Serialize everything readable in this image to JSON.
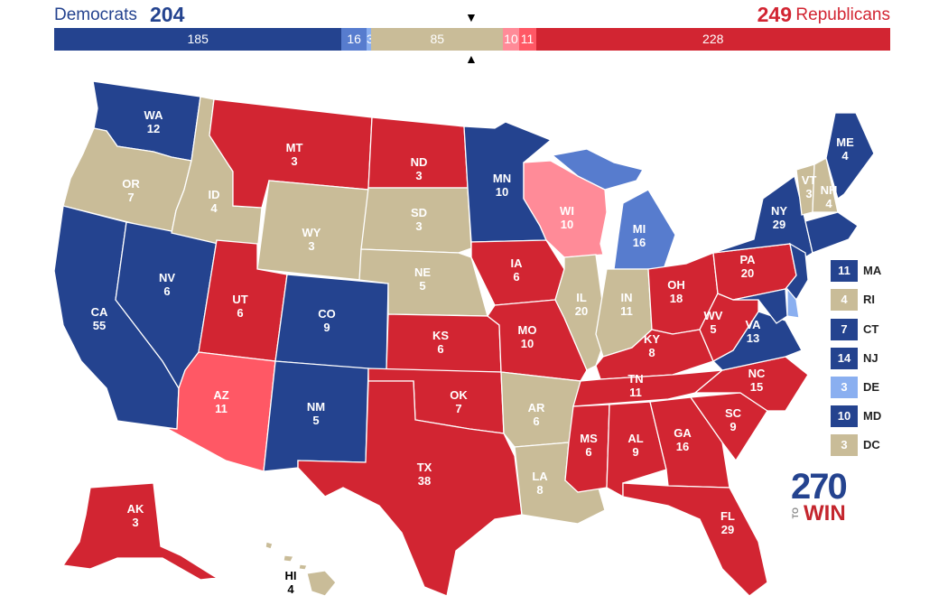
{
  "header": {
    "dem_label": "Democrats",
    "dem_total": "204",
    "rep_total": "249",
    "rep_label": "Republicans"
  },
  "colors": {
    "safe_dem": "#24438f",
    "likely_dem": "#577cce",
    "lean_dem": "#8aaff0",
    "tossup": "#c9bc98",
    "lean_rep": "#ff8b98",
    "likely_rep": "#ff5865",
    "safe_rep": "#d22532"
  },
  "bar": [
    {
      "label": "185",
      "votes": 185,
      "rating": "safe_dem"
    },
    {
      "label": "16",
      "votes": 16,
      "rating": "likely_dem"
    },
    {
      "label": "3",
      "votes": 3,
      "rating": "lean_dem"
    },
    {
      "label": "85",
      "votes": 85,
      "rating": "tossup"
    },
    {
      "label": "10",
      "votes": 10,
      "rating": "lean_rep"
    },
    {
      "label": "11",
      "votes": 11,
      "rating": "likely_rep"
    },
    {
      "label": "228",
      "votes": 228,
      "rating": "safe_rep"
    }
  ],
  "states": {
    "WA": {
      "name": "WA",
      "ev": "12",
      "rating": "safe_dem"
    },
    "OR": {
      "name": "OR",
      "ev": "7",
      "rating": "tossup"
    },
    "CA": {
      "name": "CA",
      "ev": "55",
      "rating": "safe_dem"
    },
    "NV": {
      "name": "NV",
      "ev": "6",
      "rating": "safe_dem"
    },
    "ID": {
      "name": "ID",
      "ev": "4",
      "rating": "tossup"
    },
    "MT": {
      "name": "MT",
      "ev": "3",
      "rating": "safe_rep"
    },
    "WY": {
      "name": "WY",
      "ev": "3",
      "rating": "tossup"
    },
    "UT": {
      "name": "UT",
      "ev": "6",
      "rating": "safe_rep"
    },
    "AZ": {
      "name": "AZ",
      "ev": "11",
      "rating": "likely_rep"
    },
    "CO": {
      "name": "CO",
      "ev": "9",
      "rating": "safe_dem"
    },
    "NM": {
      "name": "NM",
      "ev": "5",
      "rating": "safe_dem"
    },
    "ND": {
      "name": "ND",
      "ev": "3",
      "rating": "safe_rep"
    },
    "SD": {
      "name": "SD",
      "ev": "3",
      "rating": "tossup"
    },
    "NE": {
      "name": "NE",
      "ev": "5",
      "rating": "tossup"
    },
    "KS": {
      "name": "KS",
      "ev": "6",
      "rating": "safe_rep"
    },
    "OK": {
      "name": "OK",
      "ev": "7",
      "rating": "safe_rep"
    },
    "TX": {
      "name": "TX",
      "ev": "38",
      "rating": "safe_rep"
    },
    "MN": {
      "name": "MN",
      "ev": "10",
      "rating": "safe_dem"
    },
    "IA": {
      "name": "IA",
      "ev": "6",
      "rating": "safe_rep"
    },
    "MO": {
      "name": "MO",
      "ev": "10",
      "rating": "safe_rep"
    },
    "AR": {
      "name": "AR",
      "ev": "6",
      "rating": "tossup"
    },
    "LA": {
      "name": "LA",
      "ev": "8",
      "rating": "tossup"
    },
    "WI": {
      "name": "WI",
      "ev": "10",
      "rating": "lean_rep"
    },
    "IL": {
      "name": "IL",
      "ev": "20",
      "rating": "tossup"
    },
    "MI": {
      "name": "MI",
      "ev": "16",
      "rating": "likely_dem"
    },
    "IN": {
      "name": "IN",
      "ev": "11",
      "rating": "tossup"
    },
    "OH": {
      "name": "OH",
      "ev": "18",
      "rating": "safe_rep"
    },
    "KY": {
      "name": "KY",
      "ev": "8",
      "rating": "safe_rep"
    },
    "TN": {
      "name": "TN",
      "ev": "11",
      "rating": "safe_rep"
    },
    "MS": {
      "name": "MS",
      "ev": "6",
      "rating": "safe_rep"
    },
    "AL": {
      "name": "AL",
      "ev": "9",
      "rating": "safe_rep"
    },
    "GA": {
      "name": "GA",
      "ev": "16",
      "rating": "safe_rep"
    },
    "FL": {
      "name": "FL",
      "ev": "29",
      "rating": "safe_rep"
    },
    "SC": {
      "name": "SC",
      "ev": "9",
      "rating": "safe_rep"
    },
    "NC": {
      "name": "NC",
      "ev": "15",
      "rating": "safe_rep"
    },
    "VA": {
      "name": "VA",
      "ev": "13",
      "rating": "safe_dem"
    },
    "WV": {
      "name": "WV",
      "ev": "5",
      "rating": "safe_rep"
    },
    "PA": {
      "name": "PA",
      "ev": "20",
      "rating": "safe_rep"
    },
    "NY": {
      "name": "NY",
      "ev": "29",
      "rating": "safe_dem"
    },
    "VT": {
      "name": "VT",
      "ev": "3",
      "rating": "tossup"
    },
    "NH": {
      "name": "NH",
      "ev": "4",
      "rating": "tossup"
    },
    "ME": {
      "name": "ME",
      "ev": "4",
      "rating": "safe_dem"
    },
    "AK": {
      "name": "AK",
      "ev": "3",
      "rating": "safe_rep"
    },
    "HI": {
      "name": "HI",
      "ev": "4",
      "rating": "tossup"
    }
  },
  "legend": [
    {
      "ev": "11",
      "name": "MA",
      "rating": "safe_dem"
    },
    {
      "ev": "4",
      "name": "RI",
      "rating": "tossup"
    },
    {
      "ev": "7",
      "name": "CT",
      "rating": "safe_dem"
    },
    {
      "ev": "14",
      "name": "NJ",
      "rating": "safe_dem"
    },
    {
      "ev": "3",
      "name": "DE",
      "rating": "lean_dem"
    },
    {
      "ev": "10",
      "name": "MD",
      "rating": "safe_dem"
    },
    {
      "ev": "3",
      "name": "DC",
      "rating": "tossup"
    }
  ],
  "logo": {
    "number": "270",
    "to": "TO",
    "win": "WIN"
  }
}
